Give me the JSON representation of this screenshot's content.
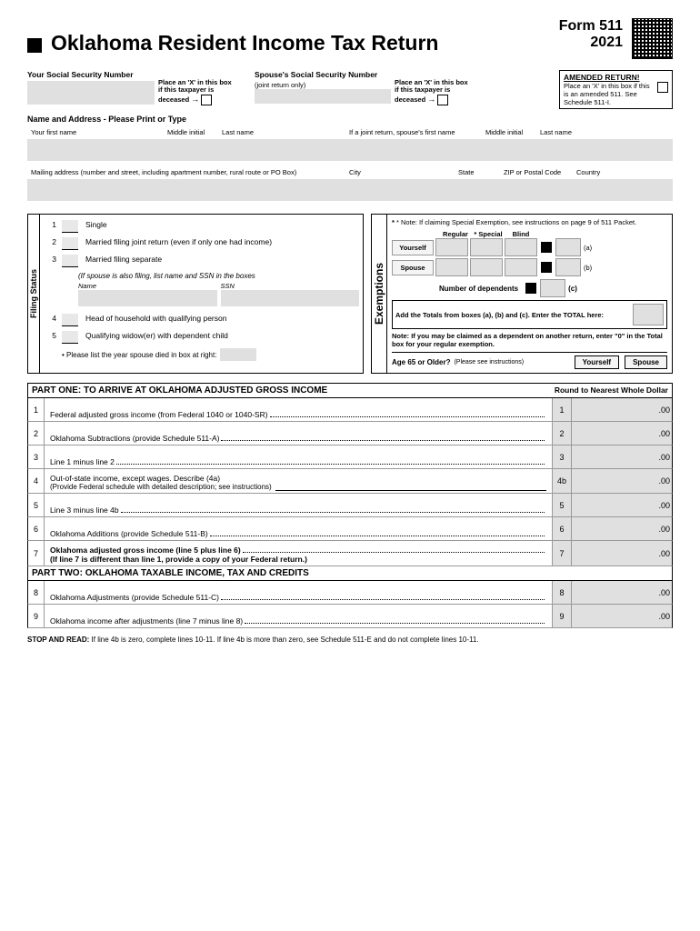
{
  "header": {
    "title": "Oklahoma Resident Income Tax Return",
    "form_no": "Form 511",
    "year": "2021"
  },
  "ssn": {
    "your_label": "Your Social Security Number",
    "spouse_label": "Spouse's Social Security Number",
    "spouse_sub": "(joint return only)",
    "deceased_note": "Place an 'X' in this box if this taxpayer is deceased",
    "amended_title": "AMENDED RETURN!",
    "amended_text": "Place an 'X' in this box if this is an amended 511. See Schedule 511-I."
  },
  "name_addr": {
    "section_label": "Name and Address - Please Print or Type",
    "first": "Your first name",
    "mi": "Middle initial",
    "last": "Last name",
    "sp_first": "If a joint return, spouse's first name",
    "sp_mi": "Middle initial",
    "sp_last": "Last name",
    "mailing": "Mailing address (number and street, including apartment number, rural route or PO Box)",
    "city": "City",
    "state": "State",
    "zip": "ZIP or Postal Code",
    "country": "Country"
  },
  "filing": {
    "side": "Filing Status",
    "opt1": "Single",
    "opt2": "Married filing joint return (even if only one had income)",
    "opt3": "Married filing separate",
    "opt3_sub": "(If spouse is also filing, list name and SSN in the boxes",
    "name_lbl": "Name",
    "ssn_lbl": "SSN",
    "opt4": "Head of household with qualifying person",
    "opt5": "Qualifying widow(er) with dependent child",
    "opt5_sub": "• Please list the year spouse died in box at right:"
  },
  "exempt": {
    "side": "Exemptions",
    "note": "* Note: If claiming Special Exemption, see instructions on page 9 of 511 Packet.",
    "regular": "Regular",
    "special": "* Special",
    "blind": "Blind",
    "yourself": "Yourself",
    "spouse": "Spouse",
    "dep": "Number of dependents",
    "add": "Add the Totals from boxes (a), (b) and (c). Enter the TOTAL here:",
    "dep_note": "Note: If you may be claimed as a dependent on another return, enter \"0\" in the Total box for your regular exemption.",
    "age": "Age 65 or Older?",
    "age_sub": "(Please see instructions)",
    "ys_y": "Yourself",
    "ys_s": "Spouse",
    "a": "(a)",
    "b": "(b)",
    "c": "(c)"
  },
  "part1": {
    "title": "PART ONE:  TO ARRIVE AT OKLAHOMA ADJUSTED GROSS INCOME",
    "round": "Round to Nearest Whole Dollar",
    "lines": [
      {
        "n": "1",
        "t": "Federal adjusted gross income (from Federal 1040 or 1040-SR)",
        "r": "1"
      },
      {
        "n": "2",
        "t": "Oklahoma Subtractions (provide Schedule 511-A)",
        "r": "2"
      },
      {
        "n": "3",
        "t": "Line 1 minus line 2",
        "r": "3"
      },
      {
        "n": "4",
        "t": "Out-of-state income, except wages. Describe (4a)",
        "sub": "(Provide Federal schedule with detailed description; see instructions)",
        "r": "4b"
      },
      {
        "n": "5",
        "t": "Line 3 minus line 4b",
        "r": "5"
      },
      {
        "n": "6",
        "t": "Oklahoma Additions (provide Schedule 511-B)",
        "r": "6"
      },
      {
        "n": "7",
        "t": "Oklahoma adjusted gross income (line 5 plus line 6)",
        "sub2": "(If line 7 is different than line 1, provide a copy of your Federal return.)",
        "r": "7",
        "bold": true
      }
    ]
  },
  "part2": {
    "title": "PART TWO:  OKLAHOMA TAXABLE INCOME, TAX AND CREDITS",
    "lines": [
      {
        "n": "8",
        "t": "Oklahoma Adjustments (provide Schedule 511-C)",
        "r": "8"
      },
      {
        "n": "9",
        "t": "Oklahoma income after adjustments (line 7 minus line 8)",
        "r": "9"
      }
    ]
  },
  "stop": {
    "label": "STOP AND READ:",
    "text": "If line 4b is zero, complete lines 10-11. If line 4b is more than zero, see Schedule 511-E and do not complete lines 10-11."
  },
  "colors": {
    "gray": "#e0e0e0"
  }
}
